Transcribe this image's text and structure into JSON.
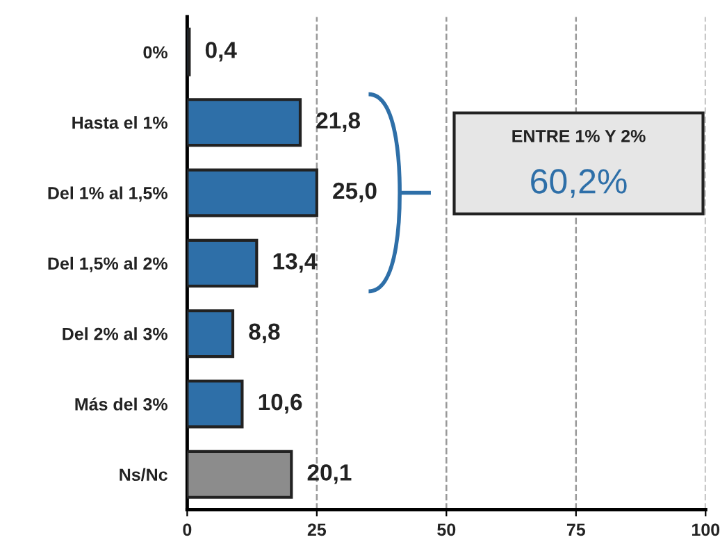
{
  "chart_data": {
    "type": "bar",
    "orientation": "horizontal",
    "categories": [
      "0%",
      "Hasta el 1%",
      "Del 1% al 1,5%",
      "Del 1,5% al 2%",
      "Del 2% al 3%",
      "Más del 3%",
      "Ns/Nc"
    ],
    "values": [
      0.4,
      21.8,
      25.0,
      13.4,
      8.8,
      10.6,
      20.1
    ],
    "colors": [
      "#2e6fa8",
      "#2e6fa8",
      "#2e6fa8",
      "#2e6fa8",
      "#2e6fa8",
      "#2e6fa8",
      "#8c8c8c"
    ],
    "value_labels": [
      "0,4",
      "21,8",
      "25,0",
      "13,4",
      "8,8",
      "10,6",
      "20,1"
    ],
    "xlim": [
      0,
      100
    ],
    "xticks": [
      0,
      25,
      50,
      75,
      100
    ],
    "grid": "x",
    "legend": false,
    "annotations": [
      "ENTRE 1% Y 2%",
      "60,2%"
    ]
  }
}
